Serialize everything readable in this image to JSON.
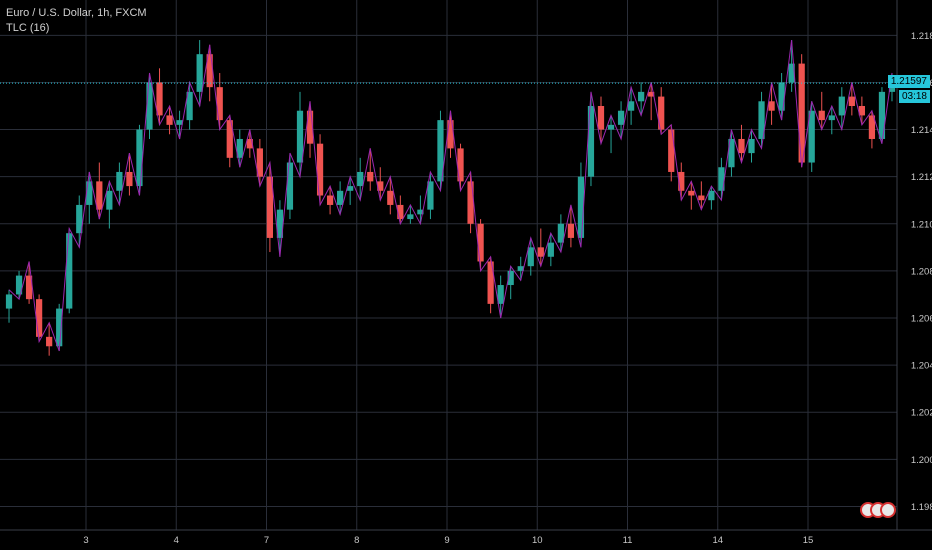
{
  "legend": {
    "symbol": "Euro / U.S. Dollar, 1h, FXCM",
    "indicator": "TLC (16)"
  },
  "price_badge": {
    "price": "1.21597",
    "countdown": "03:18",
    "color": "#26c6da"
  },
  "colors": {
    "up": "#26a69a",
    "down": "#ef5350",
    "indicator": "#9c27b0",
    "grid": "#2a2e39",
    "background": "#000000"
  },
  "chart_data": {
    "type": "candlestick",
    "title": "Euro / U.S. Dollar, 1h, FXCM",
    "ylim": [
      1.197,
      1.2195
    ],
    "y_ticks": [
      "1.21800",
      "1.21600",
      "1.21400",
      "1.21200",
      "1.21000",
      "1.20800",
      "1.20600",
      "1.20400",
      "1.20200",
      "1.20000",
      "1.19800"
    ],
    "x_ticks": [
      "3",
      "4",
      "7",
      "8",
      "9",
      "10",
      "11",
      "14",
      "15"
    ],
    "last_price": 1.21597,
    "grid": true,
    "series": [
      {
        "name": "EURUSD",
        "kind": "candles",
        "ohlc": [
          [
            1.2064,
            1.2072,
            1.2058,
            1.207
          ],
          [
            1.207,
            1.208,
            1.2068,
            1.2078
          ],
          [
            1.2078,
            1.2084,
            1.2066,
            1.2068
          ],
          [
            1.2068,
            1.207,
            1.205,
            1.2052
          ],
          [
            1.2052,
            1.2058,
            1.2044,
            1.2048
          ],
          [
            1.2048,
            1.2066,
            1.2046,
            1.2064
          ],
          [
            1.2064,
            1.2098,
            1.2062,
            1.2096
          ],
          [
            1.2096,
            1.2112,
            1.209,
            1.2108
          ],
          [
            1.2108,
            1.2122,
            1.21,
            1.2118
          ],
          [
            1.2118,
            1.2126,
            1.2102,
            1.2106
          ],
          [
            1.2106,
            1.2118,
            1.2098,
            1.2114
          ],
          [
            1.2114,
            1.2126,
            1.2108,
            1.2122
          ],
          [
            1.2122,
            1.213,
            1.2112,
            1.2116
          ],
          [
            1.2116,
            1.2142,
            1.2112,
            1.214
          ],
          [
            1.214,
            1.2164,
            1.2136,
            1.216
          ],
          [
            1.216,
            1.2166,
            1.2142,
            1.2146
          ],
          [
            1.2146,
            1.215,
            1.2138,
            1.2142
          ],
          [
            1.2142,
            1.2148,
            1.2136,
            1.2144
          ],
          [
            1.2144,
            1.216,
            1.214,
            1.2156
          ],
          [
            1.2156,
            1.2178,
            1.215,
            1.2172
          ],
          [
            1.2172,
            1.2176,
            1.2152,
            1.2158
          ],
          [
            1.2158,
            1.2164,
            1.214,
            1.2144
          ],
          [
            1.2144,
            1.2146,
            1.2124,
            1.2128
          ],
          [
            1.2128,
            1.214,
            1.2124,
            1.2136
          ],
          [
            1.2136,
            1.214,
            1.2128,
            1.2132
          ],
          [
            1.2132,
            1.2136,
            1.2116,
            1.212
          ],
          [
            1.212,
            1.2126,
            1.2088,
            1.2094
          ],
          [
            1.2094,
            1.211,
            1.2086,
            1.2106
          ],
          [
            1.2106,
            1.213,
            1.2102,
            1.2126
          ],
          [
            1.2126,
            1.2156,
            1.212,
            1.2148
          ],
          [
            1.2148,
            1.2152,
            1.2128,
            1.2134
          ],
          [
            1.2134,
            1.2138,
            1.2108,
            1.2112
          ],
          [
            1.2112,
            1.2116,
            1.2104,
            1.2108
          ],
          [
            1.2108,
            1.2118,
            1.2104,
            1.2114
          ],
          [
            1.2114,
            1.212,
            1.2108,
            1.2116
          ],
          [
            1.2116,
            1.2128,
            1.211,
            1.2122
          ],
          [
            1.2122,
            1.2132,
            1.2114,
            1.2118
          ],
          [
            1.2118,
            1.2124,
            1.211,
            1.2114
          ],
          [
            1.2114,
            1.212,
            1.2104,
            1.2108
          ],
          [
            1.2108,
            1.2112,
            1.21,
            1.2102
          ],
          [
            1.2102,
            1.2108,
            1.21,
            1.2104
          ],
          [
            1.2104,
            1.2112,
            1.21,
            1.2106
          ],
          [
            1.2106,
            1.2122,
            1.2102,
            1.2118
          ],
          [
            1.2118,
            1.2148,
            1.2114,
            1.2144
          ],
          [
            1.2144,
            1.2148,
            1.2128,
            1.2132
          ],
          [
            1.2132,
            1.2134,
            1.2114,
            1.2118
          ],
          [
            1.2118,
            1.2122,
            1.2096,
            1.21
          ],
          [
            1.21,
            1.2102,
            1.208,
            1.2084
          ],
          [
            1.2084,
            1.2086,
            1.2062,
            1.2066
          ],
          [
            1.2066,
            1.2078,
            1.206,
            1.2074
          ],
          [
            1.2074,
            1.2082,
            1.2068,
            1.208
          ],
          [
            1.208,
            1.2086,
            1.2076,
            1.2082
          ],
          [
            1.2082,
            1.2094,
            1.2078,
            1.209
          ],
          [
            1.209,
            1.2098,
            1.2082,
            1.2086
          ],
          [
            1.2086,
            1.2096,
            1.2082,
            1.2092
          ],
          [
            1.2092,
            1.2104,
            1.2088,
            1.21
          ],
          [
            1.21,
            1.2108,
            1.209,
            1.2094
          ],
          [
            1.2094,
            1.2126,
            1.209,
            1.212
          ],
          [
            1.212,
            1.2156,
            1.2116,
            1.215
          ],
          [
            1.215,
            1.2154,
            1.2134,
            1.214
          ],
          [
            1.214,
            1.2146,
            1.213,
            1.2142
          ],
          [
            1.2142,
            1.2152,
            1.2136,
            1.2148
          ],
          [
            1.2148,
            1.2158,
            1.2142,
            1.2152
          ],
          [
            1.2152,
            1.216,
            1.2146,
            1.2156
          ],
          [
            1.2156,
            1.216,
            1.2144,
            1.2154
          ],
          [
            1.2154,
            1.2158,
            1.2138,
            1.214
          ],
          [
            1.214,
            1.2142,
            1.2118,
            1.2122
          ],
          [
            1.2122,
            1.2126,
            1.211,
            1.2114
          ],
          [
            1.2114,
            1.2118,
            1.2106,
            1.2112
          ],
          [
            1.2112,
            1.2118,
            1.2106,
            1.211
          ],
          [
            1.211,
            1.2116,
            1.2106,
            1.2114
          ],
          [
            1.2114,
            1.2128,
            1.211,
            1.2124
          ],
          [
            1.2124,
            1.214,
            1.212,
            1.2136
          ],
          [
            1.2136,
            1.2142,
            1.2126,
            1.213
          ],
          [
            1.213,
            1.214,
            1.2126,
            1.2136
          ],
          [
            1.2136,
            1.2156,
            1.2132,
            1.2152
          ],
          [
            1.2152,
            1.216,
            1.2142,
            1.2148
          ],
          [
            1.2148,
            1.2164,
            1.2144,
            1.216
          ],
          [
            1.216,
            1.2178,
            1.2156,
            1.2168
          ],
          [
            1.2168,
            1.2172,
            1.2124,
            1.2126
          ],
          [
            1.2126,
            1.2152,
            1.2122,
            1.2148
          ],
          [
            1.2148,
            1.2156,
            1.214,
            1.2144
          ],
          [
            1.2144,
            1.215,
            1.2138,
            1.2146
          ],
          [
            1.2146,
            1.2158,
            1.214,
            1.2154
          ],
          [
            1.2154,
            1.216,
            1.2146,
            1.215
          ],
          [
            1.215,
            1.2154,
            1.2142,
            1.2146
          ],
          [
            1.2146,
            1.2148,
            1.2132,
            1.2136
          ],
          [
            1.2136,
            1.2158,
            1.2134,
            1.2156
          ],
          [
            1.2156,
            1.2164,
            1.2152,
            1.216
          ]
        ]
      },
      {
        "name": "TLC (16)",
        "kind": "line",
        "color": "#9c27b0"
      }
    ]
  }
}
